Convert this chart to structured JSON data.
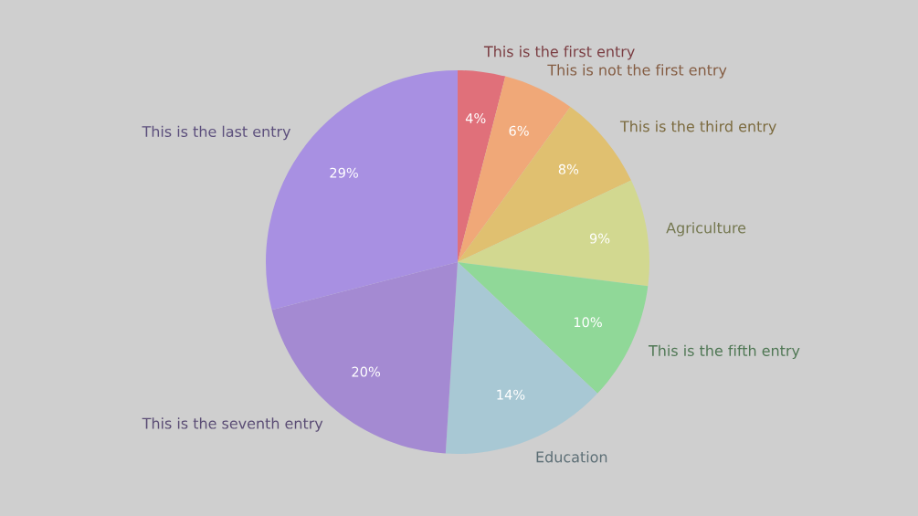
{
  "chart_data": {
    "type": "pie",
    "categories": [
      "This is the first entry",
      "This is not the first entry",
      "This is the third entry",
      "Agriculture",
      "This is the fifth entry",
      "Education",
      "This is the seventh entry",
      "This is the last entry"
    ],
    "values": [
      4,
      6,
      8,
      9,
      10,
      14,
      20,
      29
    ],
    "value_labels": [
      "4%",
      "6%",
      "8%",
      "9%",
      "10%",
      "14%",
      "20%",
      "29%"
    ],
    "colors": [
      "#e0707a",
      "#f0a878",
      "#e0c070",
      "#d2d890",
      "#90d898",
      "#a8c8d4",
      "#a48ad2",
      "#a890e2"
    ],
    "legend": false
  }
}
